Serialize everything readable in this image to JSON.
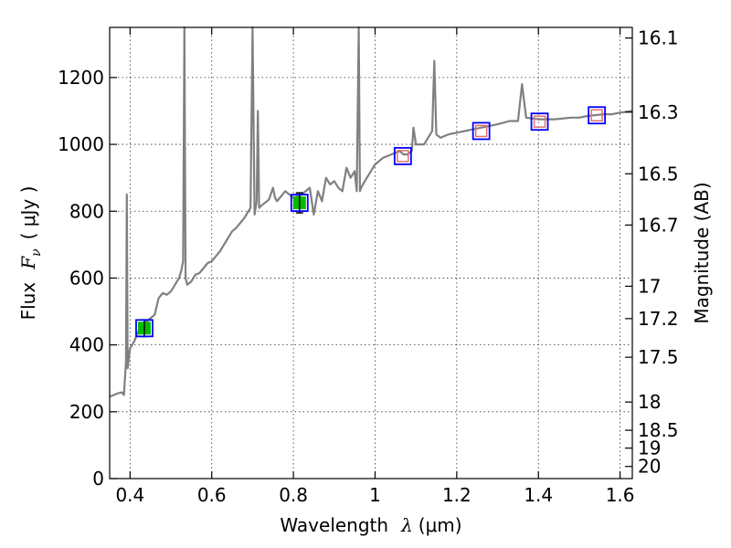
{
  "chart_data": {
    "type": "line",
    "xlabel_text": "Wavelength",
    "xlabel_symbol": "λ",
    "xlabel_unit": "(μm)",
    "ylabel_text": "Flux",
    "ylabel_symbol": "F",
    "ylabel_subscript": "ν",
    "ylabel_unit": "( μJy )",
    "y2label": "Magnitude (AB)",
    "xlim": [
      0.35,
      1.63
    ],
    "ylim": [
      0,
      1350
    ],
    "grid": true,
    "x_ticks": [
      0.4,
      0.6,
      0.8,
      1.0,
      1.2,
      1.4,
      1.6
    ],
    "x_tick_labels": [
      "0.4",
      "0.6",
      "0.8",
      "1",
      "1.2",
      "1.4",
      "1.6"
    ],
    "y_ticks": [
      0,
      200,
      400,
      600,
      800,
      1000,
      1200
    ],
    "y_tick_labels": [
      "0",
      "200",
      "400",
      "600",
      "800",
      "1000",
      "1200"
    ],
    "mag_ticks": [
      16.1,
      16.3,
      16.5,
      16.7,
      17,
      17.2,
      17.5,
      18,
      18.5,
      19,
      20
    ],
    "mag_tick_labels": [
      "16.1",
      "16.3",
      "16.5",
      "16.7",
      "17",
      "17.2",
      "17.5",
      "18",
      "18.5",
      "19",
      "20"
    ],
    "mag_zero_point": 23.9,
    "colors": {
      "spectrum": "#808080",
      "box": "#0000ff",
      "observed": "#00bb00",
      "model": "#e07070",
      "errorbar": "#000000"
    },
    "spectrum": {
      "x": [
        0.35,
        0.36,
        0.37,
        0.38,
        0.385,
        0.39,
        0.392,
        0.394,
        0.397,
        0.4,
        0.41,
        0.42,
        0.43,
        0.44,
        0.45,
        0.46,
        0.47,
        0.48,
        0.49,
        0.5,
        0.51,
        0.52,
        0.525,
        0.53,
        0.533,
        0.536,
        0.54,
        0.55,
        0.56,
        0.57,
        0.58,
        0.59,
        0.6,
        0.62,
        0.64,
        0.65,
        0.66,
        0.68,
        0.69,
        0.695,
        0.7,
        0.705,
        0.71,
        0.713,
        0.716,
        0.72,
        0.74,
        0.75,
        0.755,
        0.76,
        0.78,
        0.8,
        0.82,
        0.84,
        0.85,
        0.86,
        0.87,
        0.88,
        0.89,
        0.9,
        0.91,
        0.92,
        0.93,
        0.94,
        0.95,
        0.955,
        0.96,
        0.963,
        0.966,
        0.97,
        0.98,
        0.99,
        1.0,
        1.02,
        1.04,
        1.06,
        1.07,
        1.08,
        1.09,
        1.094,
        1.1,
        1.12,
        1.14,
        1.145,
        1.15,
        1.16,
        1.18,
        1.2,
        1.24,
        1.28,
        1.3,
        1.33,
        1.35,
        1.36,
        1.37,
        1.4,
        1.44,
        1.48,
        1.5,
        1.52,
        1.56,
        1.58,
        1.6,
        1.63
      ],
      "y": [
        245,
        250,
        255,
        258,
        250,
        350,
        850,
        330,
        360,
        390,
        410,
        440,
        460,
        470,
        480,
        490,
        540,
        555,
        550,
        560,
        580,
        600,
        620,
        650,
        1350,
        600,
        580,
        590,
        610,
        615,
        630,
        645,
        650,
        680,
        720,
        740,
        750,
        780,
        800,
        810,
        1350,
        790,
        830,
        1100,
        810,
        815,
        835,
        870,
        840,
        830,
        860,
        840,
        850,
        870,
        790,
        860,
        830,
        900,
        880,
        890,
        870,
        860,
        930,
        900,
        920,
        860,
        1350,
        860,
        870,
        880,
        900,
        920,
        940,
        960,
        970,
        980,
        970,
        970,
        980,
        1050,
        1000,
        1000,
        1040,
        1250,
        1030,
        1020,
        1030,
        1035,
        1045,
        1055,
        1060,
        1070,
        1070,
        1180,
        1080,
        1075,
        1075,
        1080,
        1080,
        1085,
        1090,
        1090,
        1095,
        1100
      ]
    },
    "photometry": [
      {
        "x": 0.435,
        "observed": 450,
        "err": 25,
        "model": 450
      },
      {
        "x": 0.815,
        "observed": 825,
        "err": 30,
        "model": 825
      },
      {
        "x": 1.068,
        "observed": null,
        "err": null,
        "model": 965
      },
      {
        "x": 1.26,
        "observed": null,
        "err": null,
        "model": 1040
      },
      {
        "x": 1.403,
        "observed": null,
        "err": null,
        "model": 1068
      },
      {
        "x": 1.543,
        "observed": null,
        "err": null,
        "model": 1087
      }
    ]
  }
}
